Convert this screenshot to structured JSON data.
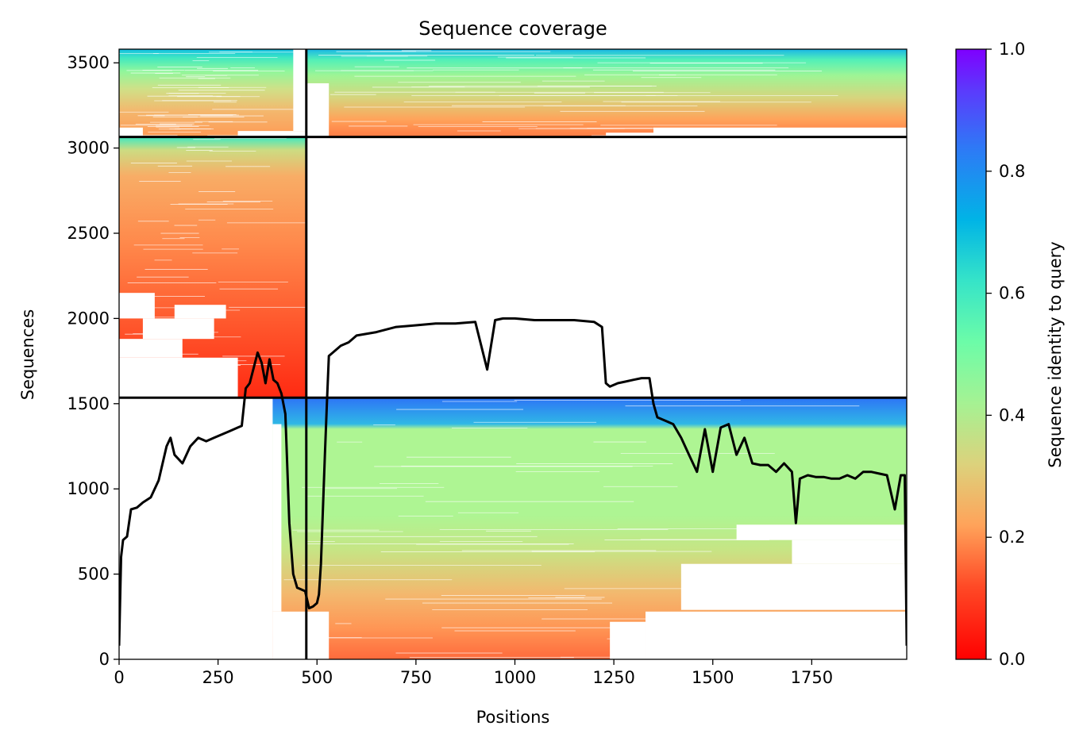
{
  "chart_data": {
    "type": "heatmap",
    "title": "Sequence coverage",
    "xlabel": "Positions",
    "ylabel": "Sequences",
    "xlim": [
      0,
      1990
    ],
    "ylim": [
      0,
      3580
    ],
    "x_ticks": [
      0,
      250,
      500,
      750,
      1000,
      1250,
      1500,
      1750
    ],
    "y_ticks": [
      0,
      500,
      1000,
      1500,
      2000,
      2500,
      3000,
      3500
    ],
    "colorbar": {
      "label": "Sequence identity to query",
      "colormap": "rainbow_r",
      "range": [
        0,
        1
      ],
      "ticks": [
        0.0,
        0.2,
        0.4,
        0.6,
        0.8,
        1.0
      ],
      "tick_labels": [
        "0.0",
        "0.2",
        "0.4",
        "0.6",
        "0.8",
        "1.0"
      ]
    },
    "chain_boundaries_x": [
      473
    ],
    "chain_boundaries_y": [
      1535,
      3065
    ],
    "coverage_blocks": [
      {
        "name": "block-bottom-right",
        "x": [
          388,
          1990
        ],
        "y": [
          0,
          1535
        ]
      },
      {
        "name": "block-middle-left",
        "x": [
          0,
          473
        ],
        "y": [
          1535,
          3065
        ]
      },
      {
        "name": "block-top-left",
        "x": [
          0,
          473
        ],
        "y": [
          3065,
          3580
        ]
      },
      {
        "name": "block-top-right",
        "x": [
          473,
          1990
        ],
        "y": [
          3065,
          3580
        ]
      }
    ],
    "coverage_line": {
      "color": "#000000",
      "x": [
        0,
        5,
        10,
        20,
        30,
        45,
        60,
        80,
        100,
        120,
        130,
        140,
        160,
        180,
        200,
        220,
        240,
        260,
        280,
        300,
        310,
        320,
        330,
        350,
        360,
        370,
        380,
        390,
        400,
        410,
        420,
        430,
        440,
        450,
        460,
        470,
        480,
        490,
        500,
        505,
        510,
        520,
        525,
        530,
        540,
        560,
        580,
        600,
        650,
        700,
        750,
        800,
        850,
        900,
        930,
        950,
        970,
        1000,
        1050,
        1100,
        1150,
        1200,
        1220,
        1230,
        1240,
        1260,
        1280,
        1300,
        1320,
        1340,
        1350,
        1360,
        1380,
        1400,
        1420,
        1440,
        1460,
        1480,
        1500,
        1520,
        1540,
        1560,
        1580,
        1600,
        1620,
        1640,
        1660,
        1680,
        1700,
        1710,
        1720,
        1740,
        1760,
        1780,
        1800,
        1820,
        1840,
        1860,
        1880,
        1900,
        1920,
        1940,
        1960,
        1975,
        1985,
        1990
      ],
      "y": [
        80,
        600,
        700,
        720,
        880,
        890,
        920,
        950,
        1050,
        1250,
        1300,
        1200,
        1150,
        1250,
        1300,
        1280,
        1300,
        1320,
        1340,
        1360,
        1370,
        1590,
        1620,
        1800,
        1740,
        1620,
        1760,
        1640,
        1620,
        1560,
        1440,
        800,
        500,
        420,
        410,
        400,
        300,
        310,
        330,
        380,
        560,
        1200,
        1500,
        1780,
        1800,
        1840,
        1860,
        1900,
        1920,
        1950,
        1960,
        1970,
        1970,
        1980,
        1700,
        1990,
        2000,
        2000,
        1990,
        1990,
        1990,
        1980,
        1950,
        1620,
        1600,
        1620,
        1630,
        1640,
        1650,
        1650,
        1500,
        1420,
        1400,
        1380,
        1300,
        1200,
        1100,
        1350,
        1100,
        1360,
        1380,
        1200,
        1300,
        1150,
        1140,
        1140,
        1100,
        1150,
        1100,
        800,
        1060,
        1080,
        1070,
        1070,
        1060,
        1060,
        1080,
        1060,
        1100,
        1100,
        1090,
        1080,
        880,
        1080,
        1080,
        80
      ]
    }
  }
}
